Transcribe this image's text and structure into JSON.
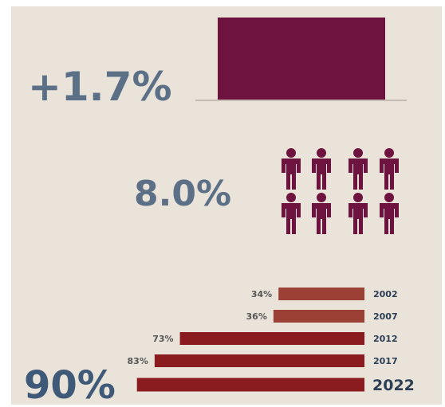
{
  "stats": [
    "+1.7%",
    "8.0%"
  ],
  "chart_data": {
    "type": "bar",
    "orientation": "horizontal",
    "categories": [
      "2002",
      "2007",
      "2012",
      "2017",
      "2022"
    ],
    "values": [
      34,
      36,
      73,
      83,
      90
    ],
    "value_labels": [
      "34%",
      "36%",
      "73%",
      "83%",
      "90%"
    ],
    "colors": [
      "#9c3f35",
      "#9c3f35",
      "#8a1b1e",
      "#8a1b1e",
      "#8a1b1e"
    ]
  }
}
